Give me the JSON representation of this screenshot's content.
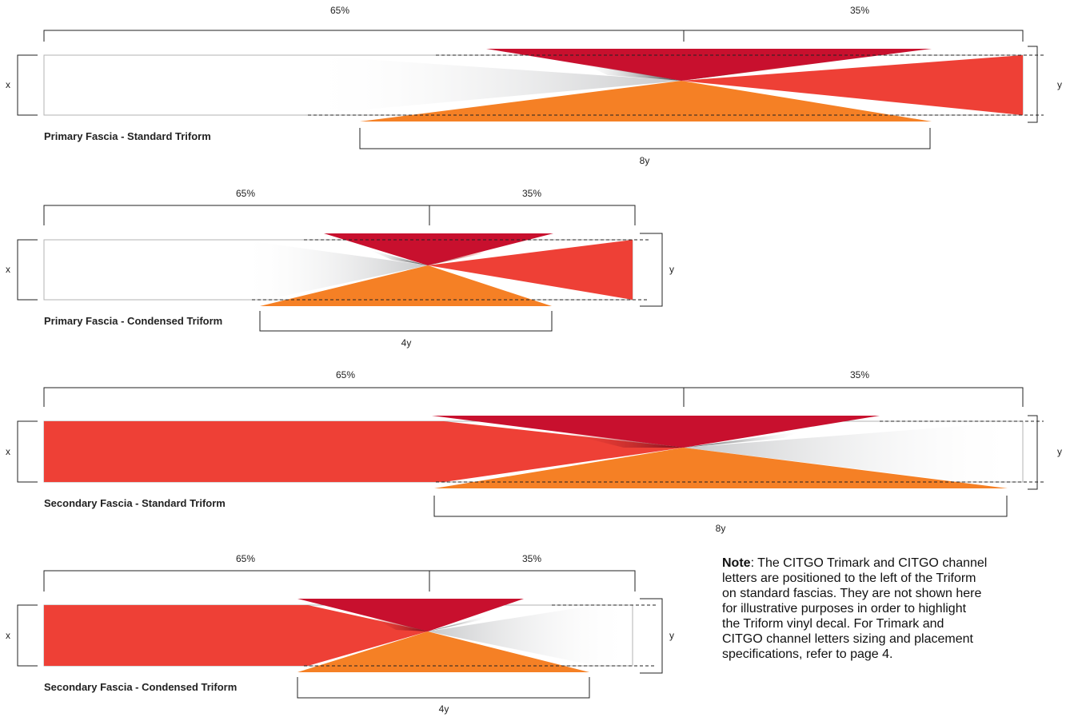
{
  "colors": {
    "red": "#ee4036",
    "crimson": "#c8102e",
    "dark_crimson": "#8f0d22",
    "orange": "#f58025",
    "stroke": "#222222"
  },
  "diagrams": [
    {
      "caption": "Primary Fascia - Standard Triform",
      "split_left": "65%",
      "split_right": "35%",
      "height_label": "x",
      "triform_height_label": "y",
      "triform_width_label": "8y"
    },
    {
      "caption": "Primary Fascia - Condensed Triform",
      "split_left": "65%",
      "split_right": "35%",
      "height_label": "x",
      "triform_height_label": "y",
      "triform_width_label": "4y"
    },
    {
      "caption": "Secondary Fascia - Standard Triform",
      "split_left": "65%",
      "split_right": "35%",
      "height_label": "x",
      "triform_height_label": "y",
      "triform_width_label": "8y"
    },
    {
      "caption": "Secondary Fascia - Condensed Triform",
      "split_left": "65%",
      "split_right": "35%",
      "height_label": "x",
      "triform_height_label": "y",
      "triform_width_label": "4y"
    }
  ],
  "note": {
    "label": "Note",
    "lines": [
      ": The CITGO Trimark and CITGO channel",
      "letters are positioned to the left of the Triform",
      "on standard fascias. They are not shown here",
      "for illustrative purposes in order to highlight",
      "the Triform vinyl decal. For Trimark and",
      "CITGO channel letters sizing and placement",
      "specifications, refer to page 4."
    ]
  }
}
